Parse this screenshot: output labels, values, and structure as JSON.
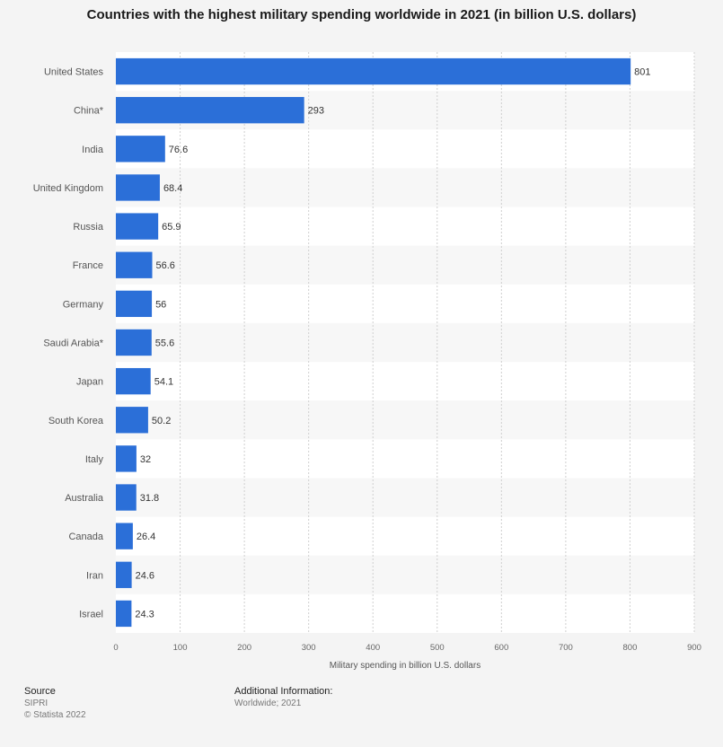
{
  "chart_data": {
    "type": "bar",
    "orientation": "horizontal",
    "title": "Countries with the highest military spending worldwide in 2021 (in billion U.S. dollars)",
    "xlabel": "Military spending in billion U.S. dollars",
    "ylabel": "",
    "xlim": [
      0,
      900
    ],
    "xticks": [
      0,
      100,
      200,
      300,
      400,
      500,
      600,
      700,
      800,
      900
    ],
    "grid": true,
    "categories": [
      "United States",
      "China*",
      "India",
      "United Kingdom",
      "Russia",
      "France",
      "Germany",
      "Saudi Arabia*",
      "Japan",
      "South Korea",
      "Italy",
      "Australia",
      "Canada",
      "Iran",
      "Israel"
    ],
    "values": [
      801,
      293,
      76.6,
      68.4,
      65.9,
      56.6,
      56,
      55.6,
      54.1,
      50.2,
      32,
      31.8,
      26.4,
      24.6,
      24.3
    ],
    "value_labels": [
      "801",
      "293",
      "76.6",
      "68.4",
      "65.9",
      "56.6",
      "56",
      "55.6",
      "54.1",
      "50.2",
      "32",
      "31.8",
      "26.4",
      "24.6",
      "24.3"
    ],
    "bar_color": "#2b6fd8"
  },
  "footer": {
    "source_heading": "Source",
    "source_name": "SIPRI",
    "copyright": "© Statista 2022",
    "additional_heading": "Additional Information:",
    "additional_text": "Worldwide; 2021"
  }
}
